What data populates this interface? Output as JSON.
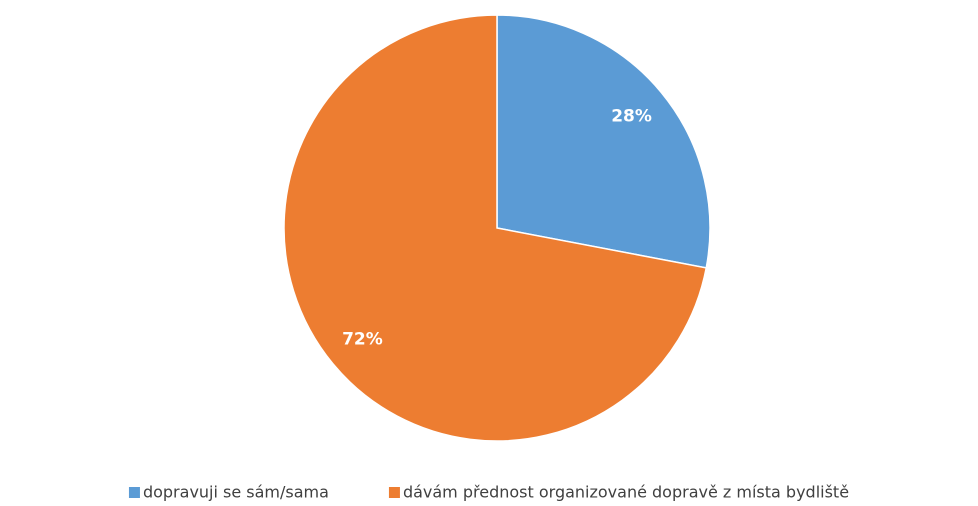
{
  "chart_data": {
    "type": "pie",
    "categories": [
      "dopravuji se sám/sama",
      "dávám přednost organizované dopravě z místa bydliště"
    ],
    "values": [
      28,
      72
    ],
    "value_labels": [
      "28%",
      "72%"
    ],
    "colors": [
      "#5b9bd5",
      "#ed7d31"
    ],
    "legend": "bottom"
  }
}
